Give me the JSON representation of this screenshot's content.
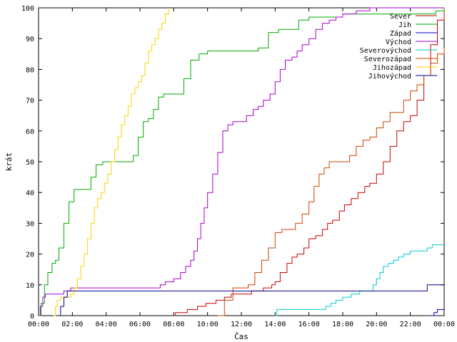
{
  "chart_data": {
    "type": "line",
    "title": "",
    "xlabel": "Čas",
    "ylabel": "krát",
    "xlim": [
      0,
      24
    ],
    "ylim": [
      0,
      100
    ],
    "grid": false,
    "legend_position": "top-right",
    "x_ticks": [
      {
        "value": 0,
        "label": "00:00"
      },
      {
        "value": 2,
        "label": "02:00"
      },
      {
        "value": 4,
        "label": "04:00"
      },
      {
        "value": 6,
        "label": "06:00"
      },
      {
        "value": 8,
        "label": "08:00"
      },
      {
        "value": 10,
        "label": "10:00"
      },
      {
        "value": 12,
        "label": "12:00"
      },
      {
        "value": 14,
        "label": "14:00"
      },
      {
        "value": 16,
        "label": "16:00"
      },
      {
        "value": 18,
        "label": "18:00"
      },
      {
        "value": 20,
        "label": "20:00"
      },
      {
        "value": 22,
        "label": "22:00"
      },
      {
        "value": 24,
        "label": "00:00"
      }
    ],
    "y_ticks": [
      0,
      10,
      20,
      30,
      40,
      50,
      60,
      70,
      80,
      90,
      100
    ],
    "series": [
      {
        "name": "Sever",
        "color": "#cc0000",
        "x": [
          8.0,
          8.1,
          8.8,
          9.4,
          9.9,
          10.5,
          11.0,
          11.4,
          12.0,
          12.6,
          13.0,
          13.3,
          13.8,
          14.0,
          14.3,
          14.7,
          15.0,
          15.3,
          15.7,
          16.0,
          16.4,
          16.8,
          17.1,
          17.4,
          17.8,
          18.1,
          18.5,
          18.9,
          19.3,
          19.6,
          20.0,
          20.4,
          20.8,
          21.2,
          21.6,
          22.0,
          22.4,
          22.8,
          23.2,
          23.6,
          24.0
        ],
        "y": [
          0,
          1,
          2,
          3,
          4,
          5,
          6,
          7,
          7,
          8,
          8,
          9,
          10,
          11,
          14,
          17,
          19,
          20,
          22,
          25,
          26,
          28,
          30,
          31,
          34,
          36,
          38,
          40,
          42,
          43,
          46,
          50,
          55,
          60,
          63,
          65,
          70,
          78,
          88,
          96,
          100
        ]
      },
      {
        "name": "Jih",
        "color": "#00aa00",
        "x": [
          0.0,
          0.15,
          0.35,
          0.55,
          0.8,
          1.0,
          1.2,
          1.5,
          1.8,
          2.1,
          2.4,
          2.8,
          3.1,
          3.4,
          3.8,
          4.2,
          4.7,
          5.2,
          5.6,
          5.9,
          6.2,
          6.5,
          6.8,
          7.1,
          7.4,
          7.8,
          8.2,
          8.6,
          9.0,
          9.5,
          10.0,
          10.6,
          11.2,
          11.8,
          12.4,
          13.0,
          13.6,
          14.2,
          14.8,
          15.4,
          16.0,
          17.0,
          18.0,
          19.0,
          20.0,
          21.0,
          22.0,
          22.8,
          23.5,
          24.0
        ],
        "y": [
          0,
          4,
          10,
          14,
          17,
          18,
          22,
          30,
          37,
          41,
          41,
          41,
          45,
          49,
          50,
          50,
          50,
          50,
          52,
          58,
          63,
          64,
          67,
          71,
          72,
          72,
          72,
          77,
          83,
          85,
          86,
          86,
          86,
          86,
          86,
          87,
          92,
          93,
          93,
          96,
          97,
          97,
          98,
          98,
          98,
          98,
          98,
          98,
          99,
          100
        ]
      },
      {
        "name": "Západ",
        "color": "#0000cc",
        "x": [
          23.2,
          23.4,
          23.6,
          23.8,
          24.0
        ],
        "y": [
          0,
          1,
          2,
          2,
          2
        ]
      },
      {
        "name": "Východ",
        "color": "#aa00cc",
        "x": [
          0.0,
          0.1,
          0.25,
          0.4,
          1.0,
          1.5,
          1.9,
          2.4,
          3.0,
          4.0,
          5.0,
          6.0,
          7.0,
          7.2,
          7.5,
          8.0,
          8.4,
          8.7,
          9.0,
          9.2,
          9.4,
          9.6,
          9.8,
          10.0,
          10.3,
          10.6,
          10.9,
          11.2,
          11.5,
          11.8,
          12.0,
          12.3,
          12.7,
          13.0,
          13.3,
          13.7,
          14.0,
          14.3,
          14.6,
          15.0,
          15.3,
          15.6,
          16.0,
          16.4,
          16.8,
          17.2,
          17.6,
          18.0,
          18.4,
          18.8,
          19.2,
          19.6,
          20.0,
          20.5,
          21.0,
          21.5,
          22.0,
          22.5,
          23.0,
          23.5,
          24.0
        ],
        "y": [
          0,
          3,
          6,
          7,
          7,
          8,
          9,
          9,
          9,
          9,
          9,
          9,
          9,
          10,
          11,
          12,
          14,
          16,
          18,
          21,
          25,
          30,
          35,
          40,
          46,
          53,
          60,
          62,
          63,
          63,
          63,
          65,
          67,
          68,
          70,
          72,
          76,
          80,
          83,
          84,
          86,
          88,
          90,
          93,
          95,
          96,
          97,
          98,
          98,
          99,
          99,
          100,
          100,
          100,
          100,
          100,
          100,
          100,
          100,
          100,
          100
        ]
      },
      {
        "name": "Severovýchod",
        "color": "#00cccc",
        "x": [
          14.0,
          14.1,
          15.0,
          16.0,
          17.0,
          17.3,
          17.6,
          18.0,
          18.5,
          19.0,
          19.7,
          19.8,
          20.0,
          20.2,
          20.4,
          20.7,
          21.0,
          21.3,
          21.6,
          22.0,
          22.3,
          22.6,
          23.0,
          23.3,
          23.6,
          24.0
        ],
        "y": [
          0,
          2,
          2,
          2,
          3,
          4,
          5,
          6,
          7,
          8,
          8,
          10,
          12,
          14,
          16,
          17,
          18,
          19,
          20,
          21,
          21,
          21,
          22,
          23,
          23,
          23
        ]
      },
      {
        "name": "Severozápad",
        "color": "#cc4400",
        "x": [
          10.6,
          11.0,
          11.5,
          12.0,
          12.4,
          12.8,
          13.2,
          13.6,
          14.0,
          14.4,
          14.8,
          15.2,
          15.6,
          16.0,
          16.3,
          16.6,
          16.9,
          17.2,
          17.6,
          18.0,
          18.4,
          18.8,
          19.2,
          19.6,
          20.0,
          20.4,
          20.8,
          21.2,
          21.6,
          22.0,
          22.4,
          22.8,
          23.2,
          23.6,
          24.0
        ],
        "y": [
          0,
          5,
          9,
          9,
          10,
          14,
          18,
          22,
          27,
          28,
          28,
          30,
          33,
          37,
          42,
          46,
          48,
          50,
          50,
          50,
          52,
          55,
          57,
          58,
          61,
          63,
          66,
          66,
          70,
          73,
          75,
          78,
          82,
          85,
          87
        ]
      },
      {
        "name": "Jihozápad",
        "color": "#ffd400",
        "x": [
          0.9,
          1.0,
          1.1,
          1.3,
          1.5,
          1.7,
          1.9,
          2.1,
          2.3,
          2.5,
          2.7,
          2.9,
          3.1,
          3.3,
          3.5,
          3.7,
          3.9,
          4.1,
          4.3,
          4.5,
          4.7,
          4.9,
          5.1,
          5.3,
          5.5,
          5.7,
          5.9,
          6.1,
          6.3,
          6.5,
          6.7,
          6.9,
          7.1,
          7.3,
          7.5,
          7.7
        ],
        "y": [
          0,
          3,
          5,
          6,
          6,
          6,
          7,
          9,
          12,
          16,
          20,
          25,
          30,
          35,
          38,
          40,
          43,
          46,
          50,
          54,
          58,
          62,
          65,
          68,
          72,
          74,
          76,
          78,
          82,
          86,
          88,
          90,
          93,
          95,
          98,
          100
        ]
      },
      {
        "name": "Jihovýchod",
        "color": "#000088",
        "x": [
          1.2,
          1.3,
          1.5,
          1.7,
          2.0,
          3.0,
          5.0,
          8.0,
          10.0,
          12.0,
          14.0,
          16.0,
          18.0,
          20.0,
          22.0,
          22.8,
          23.0,
          24.0
        ],
        "y": [
          0,
          3,
          6,
          8,
          8,
          8,
          8,
          8,
          8,
          8,
          8,
          8,
          8,
          8,
          8,
          8,
          10,
          10
        ]
      }
    ]
  }
}
